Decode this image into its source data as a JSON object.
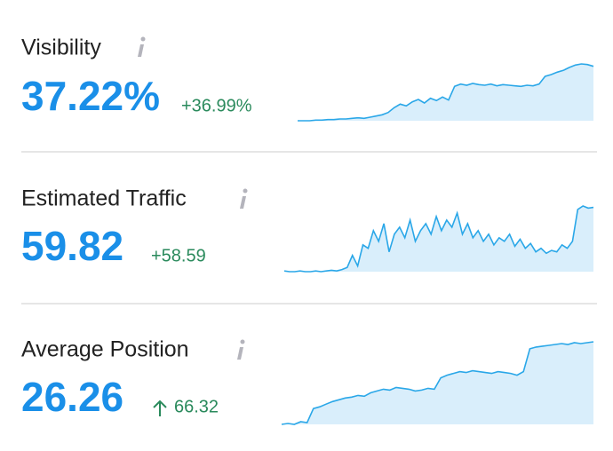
{
  "metrics": [
    {
      "label": "Visibility",
      "value": "37.22%",
      "change": "+36.99%",
      "sparkline": [
        0,
        0,
        0,
        1,
        1,
        2,
        2,
        3,
        3,
        4,
        5,
        4,
        6,
        8,
        10,
        14,
        22,
        28,
        25,
        32,
        36,
        30,
        38,
        34,
        40,
        35,
        58,
        62,
        60,
        63,
        61,
        60,
        62,
        59,
        61,
        60,
        59,
        58,
        60,
        59,
        62,
        75,
        78,
        82,
        85,
        90,
        94,
        96,
        95,
        92
      ]
    },
    {
      "label": "Estimated Traffic",
      "value": "59.82",
      "change": "+58.59",
      "sparkline": [
        3,
        2,
        2,
        3,
        2,
        2,
        3,
        2,
        3,
        4,
        3,
        5,
        8,
        25,
        10,
        40,
        35,
        60,
        45,
        70,
        30,
        55,
        65,
        50,
        75,
        45,
        60,
        70,
        55,
        80,
        60,
        75,
        65,
        85,
        55,
        70,
        50,
        60,
        45,
        55,
        40,
        50,
        45,
        55,
        38,
        48,
        35,
        42,
        30,
        35,
        28,
        32,
        30,
        40,
        35,
        45,
        90,
        95,
        92,
        93
      ]
    },
    {
      "label": "Average Position",
      "value": "26.26",
      "change": "66.32",
      "sparkline": [
        2,
        3,
        2,
        5,
        4,
        20,
        22,
        25,
        28,
        30,
        32,
        33,
        35,
        34,
        38,
        40,
        42,
        41,
        44,
        43,
        42,
        40,
        41,
        43,
        42,
        55,
        58,
        60,
        62,
        61,
        63,
        62,
        61,
        60,
        62,
        61,
        60,
        58,
        62,
        88,
        90,
        91,
        92,
        93,
        94,
        93,
        95,
        94,
        95,
        96
      ]
    }
  ]
}
